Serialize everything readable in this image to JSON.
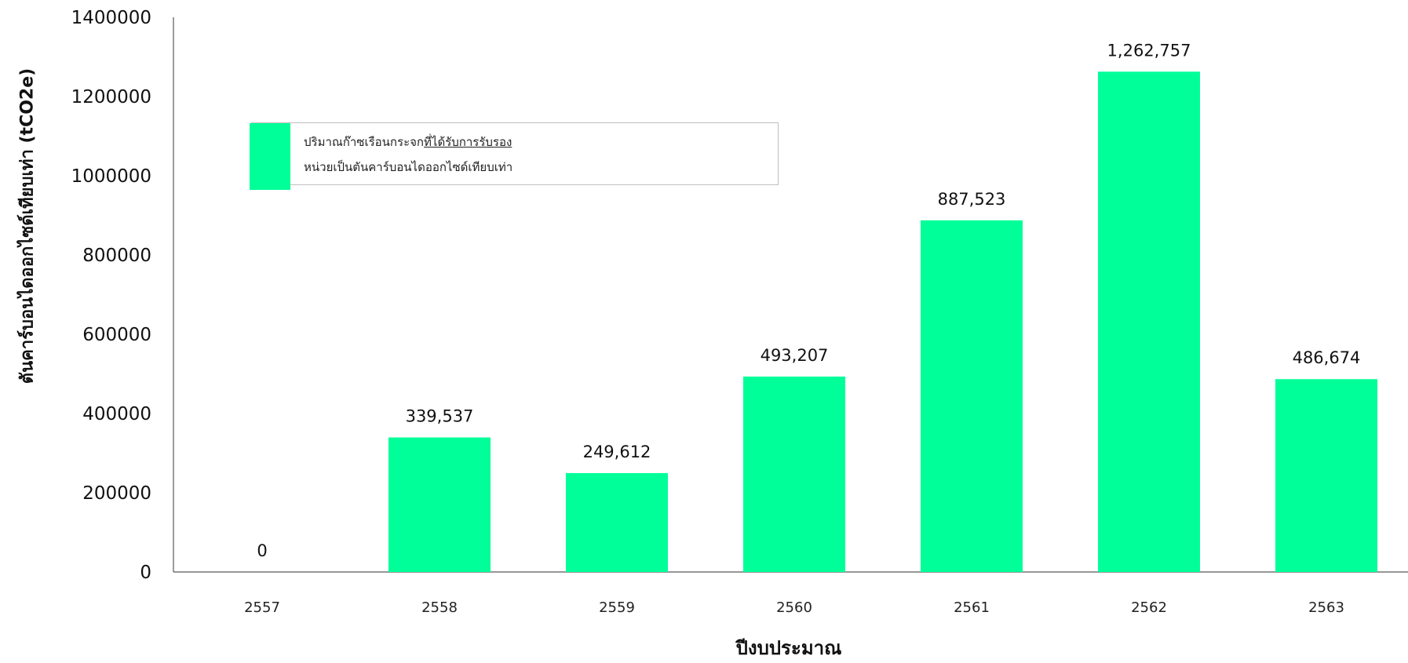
{
  "chart_data": {
    "type": "bar",
    "categories": [
      "2557",
      "2558",
      "2559",
      "2560",
      "2561",
      "2562",
      "2563"
    ],
    "values": [
      0,
      339537,
      249612,
      493207,
      887523,
      1262757,
      486674
    ],
    "data_labels": [
      "0",
      "339,537",
      "249,612",
      "493,207",
      "887,523",
      "1,262,757",
      "486,674"
    ],
    "ylim": [
      0,
      1400000
    ],
    "yticks": [
      0,
      200000,
      400000,
      600000,
      800000,
      1000000,
      1200000,
      1400000
    ],
    "ytick_labels": [
      "0",
      "200000",
      "400000",
      "600000",
      "800000",
      "1000000",
      "1200000",
      "1400000"
    ],
    "xlabel": "ปีงบประมาณ",
    "ylabel": "ตันคาร์บอนไดออกไซด์เทียบเท่า (tCO2e)",
    "legend": {
      "line1_prefix": "ปริมาณก๊าซเรือนกระจก",
      "line1_underlined": "ที่ได้รับการรับรอง",
      "line2": "หน่วยเป็นตันคาร์บอนไดออกไซด์เทียบเท่า",
      "placement": "upper-left"
    },
    "grid": false,
    "bar_color": "#00FF99",
    "axis_color": "#595959"
  }
}
